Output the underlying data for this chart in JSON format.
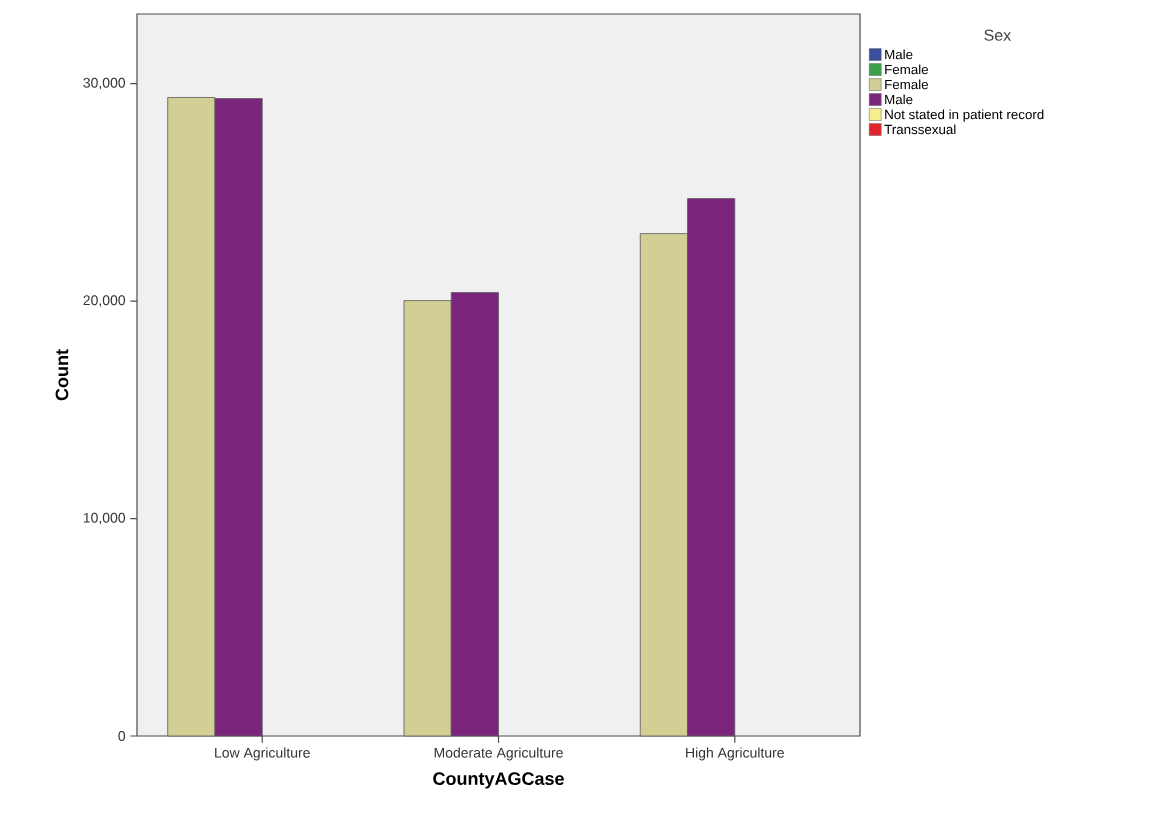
{
  "chart_data": {
    "type": "bar",
    "xlabel": "CountyAGCase",
    "ylabel": "Count",
    "legend_title": "Sex",
    "categories": [
      "Low Agriculture",
      "Moderate Agriculture",
      "High Agriculture"
    ],
    "series": [
      {
        "name": "Male",
        "color": "#3c4ea0",
        "values": [
          null,
          null,
          null
        ]
      },
      {
        "name": "Female",
        "color": "#3aa04a",
        "values": [
          null,
          null,
          null
        ]
      },
      {
        "name": "Female",
        "color": "#d2ce94",
        "values": [
          29360,
          20020,
          23100
        ]
      },
      {
        "name": "Male",
        "color": "#7b257c",
        "values": [
          29310,
          20390,
          24710
        ]
      },
      {
        "name": "Not stated in patient record",
        "color": "#f4ee8c",
        "values": [
          null,
          null,
          null
        ]
      },
      {
        "name": "Transsexual",
        "color": "#e0242c",
        "values": [
          null,
          null,
          null
        ]
      }
    ],
    "ylim": [
      0,
      33200
    ],
    "yticks": [
      0,
      {
        "value": 10000,
        "label": "10,000"
      },
      {
        "value": 20000,
        "label": "20,000"
      },
      {
        "value": 30000,
        "label": "30,000"
      }
    ],
    "grid": false,
    "legend": "top right"
  }
}
